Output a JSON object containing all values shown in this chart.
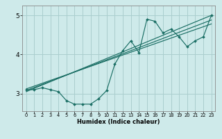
{
  "title": "",
  "xlabel": "Humidex (Indice chaleur)",
  "ylabel": "",
  "bg_color": "#ceeaea",
  "line_color": "#1a6e64",
  "grid_color": "#aacece",
  "xlim": [
    -0.5,
    23.5
  ],
  "ylim": [
    2.55,
    5.25
  ],
  "yticks": [
    3,
    4,
    5
  ],
  "xticks": [
    0,
    1,
    2,
    3,
    4,
    5,
    6,
    7,
    8,
    9,
    10,
    11,
    12,
    13,
    14,
    15,
    16,
    17,
    18,
    19,
    20,
    21,
    22,
    23
  ],
  "data_curve": {
    "x": [
      0,
      1,
      2,
      3,
      4,
      5,
      6,
      7,
      8,
      9,
      10,
      11,
      12,
      13,
      14,
      15,
      16,
      17,
      18,
      19,
      20,
      21,
      22,
      23
    ],
    "y": [
      3.1,
      3.1,
      3.15,
      3.1,
      3.05,
      2.82,
      2.73,
      2.73,
      2.73,
      2.87,
      3.08,
      3.75,
      4.1,
      4.35,
      4.05,
      4.9,
      4.85,
      4.55,
      4.65,
      4.45,
      4.2,
      4.35,
      4.45,
      5.0
    ]
  },
  "regression_lines": [
    {
      "x": [
        0,
        23
      ],
      "y": [
        3.05,
        5.0
      ]
    },
    {
      "x": [
        0,
        23
      ],
      "y": [
        3.08,
        4.88
      ]
    },
    {
      "x": [
        0,
        23
      ],
      "y": [
        3.12,
        4.78
      ]
    }
  ],
  "xlabel_fontsize": 6.0,
  "xtick_fontsize": 4.8,
  "ytick_fontsize": 6.5
}
